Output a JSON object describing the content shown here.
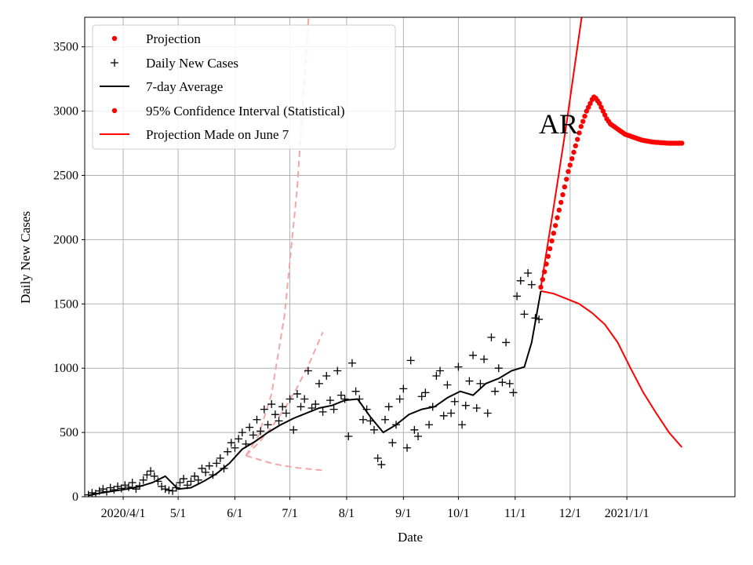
{
  "chart_data": {
    "type": "line",
    "region_label": "AR",
    "xlabel": "Date",
    "ylabel": "Daily New Cases",
    "ylim": [
      0,
      3730
    ],
    "xlim": [
      "2020-03-11",
      "2021-03-01"
    ],
    "grid": true,
    "legend_position": "top-left",
    "y_ticks": [
      0,
      500,
      1000,
      1500,
      2000,
      2500,
      3000,
      3500
    ],
    "x_ticks": [
      {
        "date": "2020-04-01",
        "label": "2020/4/1"
      },
      {
        "date": "2020-05-01",
        "label": "5/1"
      },
      {
        "date": "2020-06-01",
        "label": "6/1"
      },
      {
        "date": "2020-07-01",
        "label": "7/1"
      },
      {
        "date": "2020-08-01",
        "label": "8/1"
      },
      {
        "date": "2020-09-01",
        "label": "9/1"
      },
      {
        "date": "2020-10-01",
        "label": "10/1"
      },
      {
        "date": "2020-11-01",
        "label": "11/1"
      },
      {
        "date": "2020-12-01",
        "label": "12/1"
      },
      {
        "date": "2021-01-01",
        "label": "2021/1/1"
      }
    ],
    "colors": {
      "projection": "#ff0000",
      "daily": "#000000",
      "average": "#000000",
      "ci": "#ff0000",
      "june_projection": "#ff0000",
      "june_ci": "#f4a6a6"
    },
    "series": [
      {
        "name": "Projection",
        "style": "dots",
        "x": [
          "2020-11-15",
          "2020-11-16",
          "2020-11-17",
          "2020-11-18",
          "2020-11-19",
          "2020-11-20",
          "2020-11-21",
          "2020-11-22",
          "2020-11-23",
          "2020-11-24",
          "2020-11-25",
          "2020-11-26",
          "2020-11-27",
          "2020-11-28",
          "2020-11-29",
          "2020-11-30",
          "2020-12-01",
          "2020-12-02",
          "2020-12-03",
          "2020-12-04",
          "2020-12-05",
          "2020-12-06",
          "2020-12-07",
          "2020-12-08",
          "2020-12-09",
          "2020-12-10",
          "2020-12-11",
          "2020-12-12",
          "2020-12-13",
          "2020-12-14",
          "2020-12-15",
          "2020-12-16",
          "2020-12-17",
          "2020-12-18",
          "2020-12-19",
          "2020-12-20",
          "2020-12-21",
          "2020-12-22",
          "2020-12-23",
          "2020-12-24",
          "2020-12-25",
          "2020-12-26",
          "2020-12-27",
          "2020-12-28",
          "2020-12-29",
          "2020-12-30",
          "2020-12-31",
          "2021-01-01",
          "2021-01-02",
          "2021-01-03",
          "2021-01-04",
          "2021-01-05",
          "2021-01-06",
          "2021-01-07",
          "2021-01-08",
          "2021-01-09",
          "2021-01-10",
          "2021-01-11",
          "2021-01-12",
          "2021-01-13",
          "2021-01-14",
          "2021-01-15",
          "2021-01-16",
          "2021-01-17",
          "2021-01-18",
          "2021-01-19",
          "2021-01-20",
          "2021-01-21",
          "2021-01-22",
          "2021-01-23",
          "2021-01-24",
          "2021-01-25",
          "2021-01-26",
          "2021-01-27",
          "2021-01-28",
          "2021-01-29",
          "2021-01-30",
          "2021-01-31"
        ],
        "values": [
          1630,
          1690,
          1750,
          1810,
          1870,
          1930,
          1990,
          2050,
          2110,
          2170,
          2230,
          2290,
          2350,
          2410,
          2470,
          2530,
          2580,
          2630,
          2680,
          2730,
          2780,
          2830,
          2880,
          2920,
          2960,
          3000,
          3030,
          3060,
          3090,
          3110,
          3100,
          3080,
          3060,
          3030,
          3000,
          2970,
          2940,
          2920,
          2900,
          2890,
          2880,
          2870,
          2860,
          2850,
          2840,
          2830,
          2820,
          2815,
          2810,
          2805,
          2800,
          2795,
          2790,
          2785,
          2780,
          2775,
          2772,
          2770,
          2767,
          2765,
          2762,
          2760,
          2758,
          2757,
          2756,
          2755,
          2754,
          2753,
          2752,
          2751,
          2750,
          2750,
          2750,
          2750,
          2750,
          2750,
          2750,
          2750
        ]
      },
      {
        "name": "Daily New Cases",
        "style": "plus",
        "x": [
          "2020-03-13",
          "2020-03-15",
          "2020-03-17",
          "2020-03-19",
          "2020-03-21",
          "2020-03-23",
          "2020-03-25",
          "2020-03-27",
          "2020-03-29",
          "2020-03-31",
          "2020-04-02",
          "2020-04-04",
          "2020-04-06",
          "2020-04-08",
          "2020-04-10",
          "2020-04-12",
          "2020-04-14",
          "2020-04-16",
          "2020-04-18",
          "2020-04-20",
          "2020-04-22",
          "2020-04-24",
          "2020-04-26",
          "2020-04-28",
          "2020-04-30",
          "2020-05-02",
          "2020-05-04",
          "2020-05-06",
          "2020-05-08",
          "2020-05-10",
          "2020-05-12",
          "2020-05-14",
          "2020-05-16",
          "2020-05-18",
          "2020-05-20",
          "2020-05-22",
          "2020-05-24",
          "2020-05-26",
          "2020-05-28",
          "2020-05-30",
          "2020-06-01",
          "2020-06-03",
          "2020-06-05",
          "2020-06-07",
          "2020-06-09",
          "2020-06-11",
          "2020-06-13",
          "2020-06-15",
          "2020-06-17",
          "2020-06-19",
          "2020-06-21",
          "2020-06-23",
          "2020-06-25",
          "2020-06-27",
          "2020-06-29",
          "2020-07-01",
          "2020-07-03",
          "2020-07-05",
          "2020-07-07",
          "2020-07-09",
          "2020-07-11",
          "2020-07-13",
          "2020-07-15",
          "2020-07-17",
          "2020-07-19",
          "2020-07-21",
          "2020-07-23",
          "2020-07-25",
          "2020-07-27",
          "2020-07-29",
          "2020-07-31",
          "2020-08-02",
          "2020-08-04",
          "2020-08-06",
          "2020-08-08",
          "2020-08-10",
          "2020-08-12",
          "2020-08-14",
          "2020-08-16",
          "2020-08-18",
          "2020-08-20",
          "2020-08-22",
          "2020-08-24",
          "2020-08-26",
          "2020-08-28",
          "2020-08-30",
          "2020-09-01",
          "2020-09-03",
          "2020-09-05",
          "2020-09-07",
          "2020-09-09",
          "2020-09-11",
          "2020-09-13",
          "2020-09-15",
          "2020-09-17",
          "2020-09-19",
          "2020-09-21",
          "2020-09-23",
          "2020-09-25",
          "2020-09-27",
          "2020-09-29",
          "2020-10-01",
          "2020-10-03",
          "2020-10-05",
          "2020-10-07",
          "2020-10-09",
          "2020-10-11",
          "2020-10-13",
          "2020-10-15",
          "2020-10-17",
          "2020-10-19",
          "2020-10-21",
          "2020-10-23",
          "2020-10-25",
          "2020-10-27",
          "2020-10-29",
          "2020-10-31",
          "2020-11-02",
          "2020-11-04",
          "2020-11-06",
          "2020-11-08",
          "2020-11-10",
          "2020-11-12",
          "2020-11-14"
        ],
        "values": [
          15,
          30,
          25,
          45,
          60,
          40,
          70,
          55,
          80,
          65,
          90,
          75,
          110,
          60,
          85,
          130,
          170,
          200,
          160,
          120,
          80,
          60,
          50,
          45,
          70,
          110,
          140,
          90,
          120,
          160,
          130,
          220,
          190,
          240,
          170,
          260,
          300,
          220,
          350,
          420,
          380,
          450,
          500,
          410,
          540,
          480,
          600,
          510,
          680,
          560,
          720,
          640,
          590,
          700,
          650,
          760,
          520,
          800,
          700,
          760,
          980,
          690,
          720,
          880,
          660,
          940,
          750,
          680,
          980,
          790,
          760,
          470,
          1040,
          820,
          760,
          600,
          680,
          590,
          520,
          300,
          250,
          600,
          700,
          420,
          560,
          760,
          840,
          380,
          1060,
          520,
          470,
          780,
          810,
          560,
          700,
          940,
          980,
          630,
          870,
          650,
          740,
          1010,
          560,
          710,
          900,
          1100,
          690,
          880,
          1070,
          650,
          1240,
          820,
          1000,
          890,
          1200,
          880,
          810,
          1560,
          1680,
          1420,
          1740,
          1650,
          1390,
          1380
        ]
      },
      {
        "name": "7-day Average",
        "style": "line",
        "x": [
          "2020-03-13",
          "2020-03-20",
          "2020-03-27",
          "2020-04-03",
          "2020-04-10",
          "2020-04-17",
          "2020-04-24",
          "2020-05-01",
          "2020-05-08",
          "2020-05-15",
          "2020-05-22",
          "2020-05-29",
          "2020-06-05",
          "2020-06-12",
          "2020-06-19",
          "2020-06-26",
          "2020-07-03",
          "2020-07-10",
          "2020-07-17",
          "2020-07-24",
          "2020-07-31",
          "2020-08-07",
          "2020-08-14",
          "2020-08-21",
          "2020-08-28",
          "2020-09-04",
          "2020-09-11",
          "2020-09-18",
          "2020-09-25",
          "2020-10-02",
          "2020-10-09",
          "2020-10-16",
          "2020-10-23",
          "2020-10-30",
          "2020-11-06",
          "2020-11-10",
          "2020-11-15"
        ],
        "values": [
          10,
          30,
          45,
          60,
          80,
          110,
          160,
          60,
          70,
          120,
          180,
          260,
          370,
          430,
          500,
          560,
          610,
          650,
          690,
          710,
          750,
          760,
          620,
          500,
          560,
          640,
          680,
          700,
          770,
          820,
          790,
          880,
          920,
          980,
          1010,
          1200,
          1600
        ]
      },
      {
        "name": "95% Confidence Interval (Statistical)",
        "style": "line",
        "x": [
          "2020-11-15",
          "2020-11-22",
          "2020-11-29",
          "2020-12-06",
          "2020-12-13",
          "2020-12-20",
          "2020-12-27",
          "2021-01-03",
          "2021-01-10",
          "2021-01-17",
          "2021-01-24",
          "2021-01-31"
        ],
        "upper": [
          1630,
          2250,
          2900,
          3600,
          4300,
          5000,
          5700,
          6400,
          7000,
          7600,
          8200,
          8800
        ],
        "lower": [
          1600,
          1580,
          1540,
          1500,
          1430,
          1340,
          1200,
          1000,
          810,
          650,
          500,
          385
        ]
      },
      {
        "name": "Projection Made on June 7",
        "style": "dashed",
        "x": [
          "2020-06-07",
          "2020-06-14",
          "2020-06-21",
          "2020-06-28",
          "2020-07-05",
          "2020-07-12",
          "2020-07-19"
        ],
        "values": [
          320,
          420,
          540,
          680,
          850,
          1050,
          1280
        ],
        "upper": [
          320,
          480,
          800,
          1400,
          2400,
          3900,
          6000
        ],
        "lower": [
          320,
          290,
          260,
          240,
          225,
          215,
          205
        ]
      }
    ]
  }
}
